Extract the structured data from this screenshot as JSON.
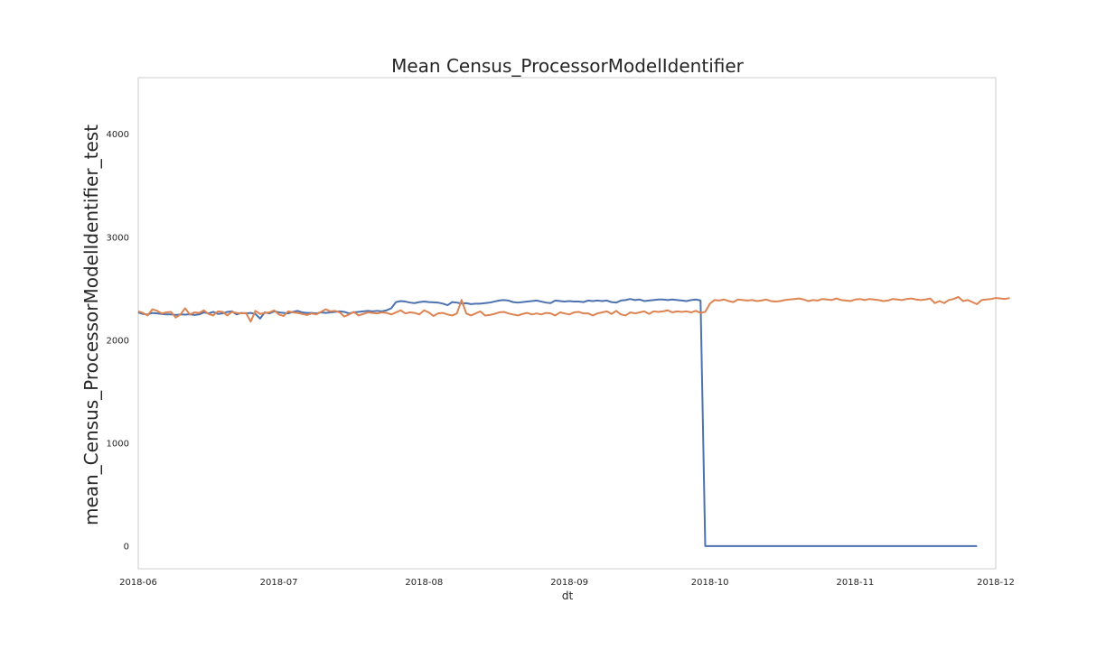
{
  "chart_data": {
    "type": "line",
    "title": "Mean Census_ProcessorModelIdentifier",
    "xlabel": "dt",
    "ylabel": "mean_Census_ProcessorModelIdentifier_test",
    "xlim": [
      "2018-06-01",
      "2018-12-01"
    ],
    "ylim": [
      -220,
      4550
    ],
    "grid": false,
    "legend": "none",
    "x_ticks": [
      "2018-06-01",
      "2018-07-01",
      "2018-08-01",
      "2018-09-01",
      "2018-10-01",
      "2018-11-01",
      "2018-12-01"
    ],
    "x_tick_labels": [
      "2018-06",
      "2018-07",
      "2018-08",
      "2018-09",
      "2018-10",
      "2018-11",
      "2018-12"
    ],
    "y_ticks": [
      0,
      1000,
      2000,
      3000,
      4000
    ],
    "y_tick_labels": [
      "0",
      "1000",
      "2000",
      "3000",
      "4000"
    ],
    "series": [
      {
        "color": "#4c72b0",
        "x_start": "2018-06-01",
        "step_days": 1,
        "values": [
          2270,
          2255,
          2250,
          2265,
          2260,
          2255,
          2250,
          2250,
          2245,
          2250,
          2248,
          2252,
          2245,
          2250,
          2270,
          2260,
          2275,
          2255,
          2260,
          2275,
          2280,
          2250,
          2265,
          2260,
          2265,
          2255,
          2210,
          2270,
          2260,
          2280,
          2270,
          2265,
          2260,
          2275,
          2285,
          2270,
          2265,
          2265,
          2260,
          2270,
          2265,
          2270,
          2275,
          2280,
          2275,
          2260,
          2270,
          2275,
          2280,
          2285,
          2280,
          2285,
          2280,
          2290,
          2310,
          2370,
          2380,
          2375,
          2365,
          2360,
          2370,
          2375,
          2370,
          2368,
          2365,
          2355,
          2340,
          2370,
          2365,
          2355,
          2360,
          2350,
          2355,
          2355,
          2360,
          2365,
          2375,
          2385,
          2390,
          2385,
          2370,
          2365,
          2370,
          2375,
          2380,
          2385,
          2375,
          2365,
          2360,
          2385,
          2380,
          2375,
          2380,
          2375,
          2375,
          2370,
          2385,
          2380,
          2385,
          2380,
          2385,
          2370,
          2365,
          2385,
          2390,
          2400,
          2390,
          2395,
          2380,
          2385,
          2390,
          2395,
          2395,
          2390,
          2395,
          2390,
          2385,
          2380,
          2390,
          2395,
          2385,
          0,
          0,
          0,
          0,
          0,
          0,
          0,
          0,
          0,
          0,
          0,
          0,
          0,
          0,
          0,
          0,
          0,
          0,
          0,
          0,
          0,
          0,
          0,
          0,
          0,
          0,
          0,
          0,
          0,
          0,
          0,
          0,
          0,
          0,
          0,
          0,
          0,
          0,
          0,
          0,
          0,
          0,
          0,
          0,
          0,
          0,
          0,
          0,
          0,
          0,
          0,
          0,
          0,
          0,
          0,
          0,
          0,
          0,
          0
        ]
      },
      {
        "color": "#dd8452",
        "x_start": "2018-06-01",
        "step_days": 1,
        "values": [
          2280,
          2265,
          2240,
          2300,
          2285,
          2260,
          2270,
          2275,
          2220,
          2250,
          2310,
          2250,
          2270,
          2265,
          2290,
          2255,
          2240,
          2280,
          2275,
          2240,
          2275,
          2265,
          2260,
          2265,
          2180,
          2285,
          2255,
          2265,
          2270,
          2290,
          2250,
          2235,
          2280,
          2270,
          2265,
          2255,
          2245,
          2260,
          2250,
          2275,
          2300,
          2280,
          2285,
          2270,
          2230,
          2250,
          2275,
          2240,
          2255,
          2270,
          2265,
          2260,
          2270,
          2265,
          2250,
          2270,
          2290,
          2260,
          2270,
          2265,
          2250,
          2290,
          2270,
          2235,
          2260,
          2265,
          2250,
          2240,
          2260,
          2390,
          2260,
          2240,
          2260,
          2280,
          2240,
          2245,
          2255,
          2270,
          2275,
          2260,
          2250,
          2240,
          2255,
          2265,
          2250,
          2260,
          2250,
          2265,
          2260,
          2240,
          2270,
          2260,
          2250,
          2270,
          2275,
          2260,
          2260,
          2240,
          2260,
          2270,
          2280,
          2255,
          2285,
          2250,
          2240,
          2270,
          2260,
          2270,
          2280,
          2255,
          2280,
          2275,
          2280,
          2290,
          2270,
          2280,
          2275,
          2280,
          2270,
          2285,
          2265,
          2275,
          2355,
          2390,
          2385,
          2395,
          2380,
          2370,
          2395,
          2390,
          2385,
          2390,
          2380,
          2385,
          2395,
          2380,
          2375,
          2380,
          2390,
          2395,
          2400,
          2405,
          2395,
          2380,
          2390,
          2385,
          2400,
          2395,
          2390,
          2405,
          2390,
          2385,
          2380,
          2395,
          2400,
          2390,
          2400,
          2395,
          2390,
          2380,
          2385,
          2400,
          2395,
          2390,
          2400,
          2405,
          2395,
          2390,
          2395,
          2405,
          2360,
          2380,
          2360,
          2390,
          2400,
          2420,
          2380,
          2390,
          2370,
          2350,
          2390,
          2395,
          2400,
          2410,
          2405,
          2400,
          2410
        ]
      }
    ]
  }
}
